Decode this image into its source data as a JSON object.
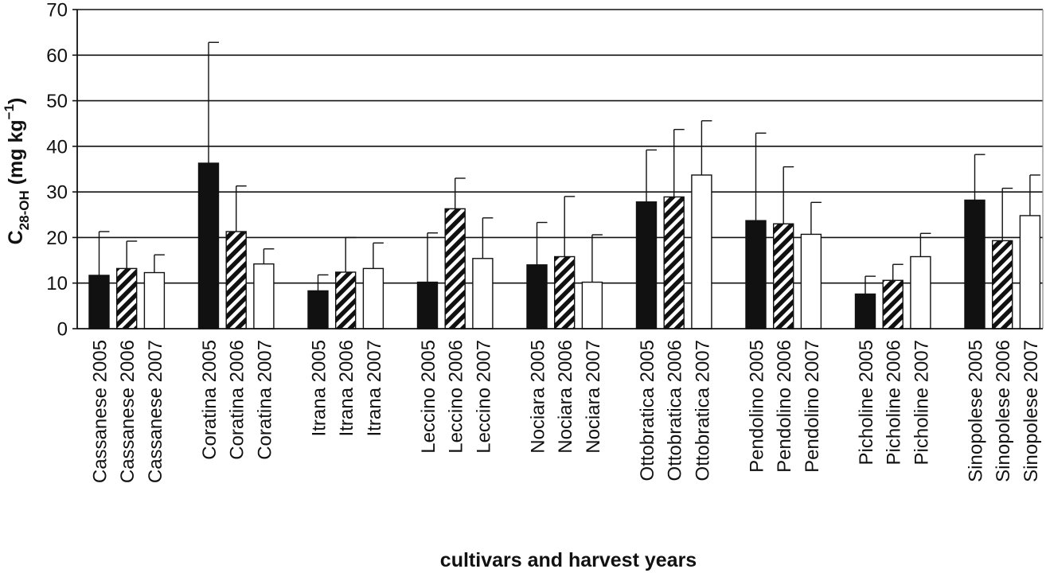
{
  "chart_data": {
    "type": "bar",
    "xlabel": "cultivars and harvest years",
    "ylabel": {
      "main": "C",
      "sub": "28-OH",
      "unit_prefix": " (mg kg",
      "sup": "−1",
      "unit_suffix": ")"
    },
    "ylim": [
      0,
      70
    ],
    "yticks": [
      "0",
      "10",
      "20",
      "30",
      "40",
      "50",
      "60",
      "70"
    ],
    "grid": true,
    "series": [
      {
        "fill": "solid black",
        "values": [
          11.7,
          36.3,
          8.3,
          10.2,
          14.0,
          27.8,
          23.7,
          7.6,
          28.2
        ],
        "errors": [
          9.6,
          26.5,
          3.5,
          10.8,
          9.3,
          11.4,
          19.2,
          3.9,
          10.0
        ]
      },
      {
        "fill": "black/white diagonal stripes",
        "values": [
          13.2,
          21.3,
          12.4,
          26.3,
          15.8,
          28.9,
          23.0,
          10.6,
          19.3
        ],
        "errors": [
          6.0,
          10.0,
          7.6,
          6.7,
          13.2,
          14.8,
          12.5,
          3.5,
          11.5
        ]
      },
      {
        "fill": "white",
        "values": [
          12.3,
          14.2,
          13.2,
          15.4,
          10.2,
          33.7,
          20.7,
          15.8,
          24.8
        ],
        "errors": [
          3.9,
          3.3,
          5.6,
          8.9,
          10.4,
          11.9,
          7.0,
          5.1,
          8.9
        ]
      }
    ],
    "categories": [
      [
        "Cassanese 2005",
        "Cassanese 2006",
        "Cassanese 2007"
      ],
      [
        "Coratina 2005",
        "Coratina 2006",
        "Coratina 2007"
      ],
      [
        "Itrana 2005",
        "Itrana 2006",
        "Itrana 2007"
      ],
      [
        "Leccino 2005",
        "Leccino 2006",
        "Leccino 2007"
      ],
      [
        "Nociara 2005",
        "Nociara 2006",
        "Nociara 2007"
      ],
      [
        "Ottobratica 2005",
        "Ottobratica 2006",
        "Ottobratica 2007"
      ],
      [
        "Pendolino 2005",
        "Pendolino 2006",
        "Pendolino 2007"
      ],
      [
        "Picholine 2005",
        "Picholine 2006",
        "Picholine 2007"
      ],
      [
        "Sinopolese 2005",
        "Sinopolese 2006",
        "Sinopolese 2007"
      ]
    ],
    "colors": {
      "solid": "#111111",
      "stripe_dark": "#111111",
      "stripe_light": "#ffffff",
      "open": "#ffffff",
      "outline": "#111111",
      "grid": "#111111"
    }
  }
}
